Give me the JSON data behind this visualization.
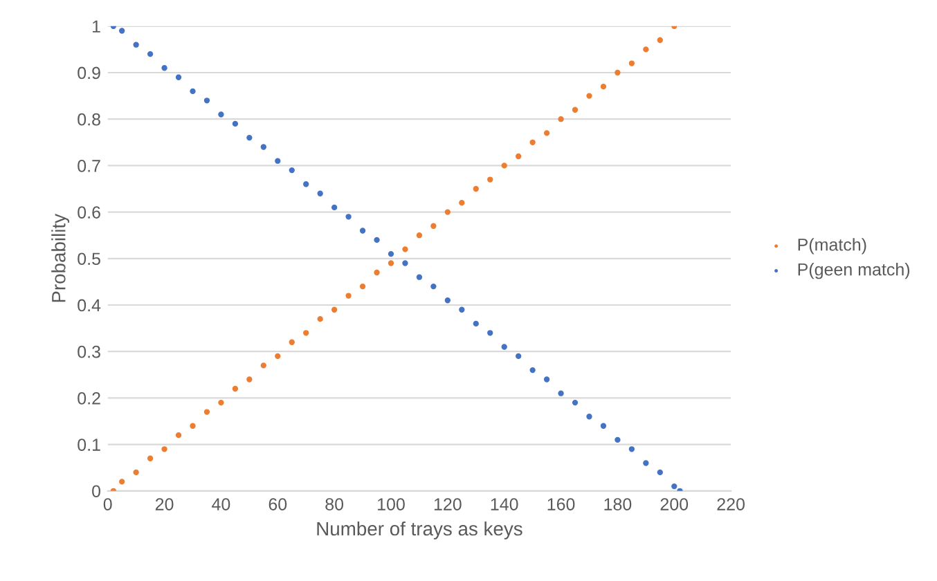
{
  "chart_data": {
    "type": "scatter",
    "xlabel": "Number of trays as keys",
    "ylabel": "Probability",
    "xlim": [
      0,
      220
    ],
    "xticks": [
      0,
      20,
      40,
      60,
      80,
      100,
      120,
      140,
      160,
      180,
      200,
      220
    ],
    "ylim": [
      0,
      1
    ],
    "yticks": [
      0,
      0.1,
      0.2,
      0.3,
      0.4,
      0.5,
      0.6,
      0.7,
      0.8,
      0.9,
      1
    ],
    "grid": "y",
    "legend": "right",
    "marker": "circle",
    "series": [
      {
        "name": "P(match)",
        "color": "#ed7d31",
        "x": [
          2,
          5,
          10,
          15,
          20,
          25,
          30,
          35,
          40,
          45,
          50,
          55,
          60,
          65,
          70,
          75,
          80,
          85,
          90,
          95,
          100,
          105,
          110,
          115,
          120,
          125,
          130,
          135,
          140,
          145,
          150,
          155,
          160,
          165,
          170,
          175,
          180,
          185,
          190,
          195,
          200
        ],
        "values": [
          0,
          0.02,
          0.04,
          0.07,
          0.09,
          0.12,
          0.14,
          0.17,
          0.19,
          0.22,
          0.24,
          0.27,
          0.29,
          0.32,
          0.34,
          0.37,
          0.39,
          0.42,
          0.44,
          0.47,
          0.49,
          0.52,
          0.55,
          0.57,
          0.6,
          0.62,
          0.65,
          0.67,
          0.7,
          0.72,
          0.75,
          0.77,
          0.8,
          0.82,
          0.85,
          0.87,
          0.9,
          0.92,
          0.95,
          0.97,
          1
        ]
      },
      {
        "name": "P(geen match)",
        "color": "#4472c4",
        "x": [
          2,
          5,
          10,
          15,
          20,
          25,
          30,
          35,
          40,
          45,
          50,
          55,
          60,
          65,
          70,
          75,
          80,
          85,
          90,
          95,
          100,
          105,
          110,
          115,
          120,
          125,
          130,
          135,
          140,
          145,
          150,
          155,
          160,
          165,
          170,
          175,
          180,
          185,
          190,
          195,
          200,
          202
        ],
        "values": [
          1,
          0.99,
          0.96,
          0.94,
          0.91,
          0.89,
          0.86,
          0.84,
          0.81,
          0.79,
          0.76,
          0.74,
          0.71,
          0.69,
          0.66,
          0.64,
          0.61,
          0.59,
          0.56,
          0.54,
          0.51,
          0.49,
          0.46,
          0.44,
          0.41,
          0.39,
          0.36,
          0.34,
          0.31,
          0.29,
          0.26,
          0.24,
          0.21,
          0.19,
          0.16,
          0.14,
          0.11,
          0.09,
          0.06,
          0.04,
          0.01,
          0
        ]
      }
    ]
  }
}
